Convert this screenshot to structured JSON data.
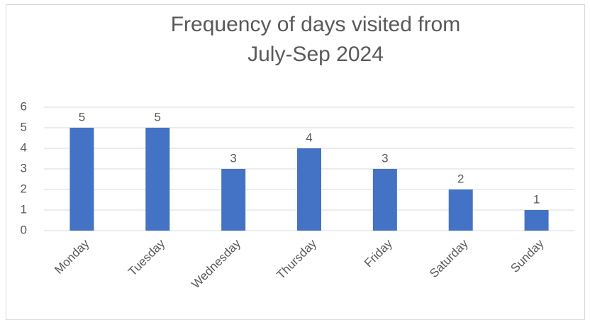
{
  "chart_data": {
    "type": "bar",
    "title": "Frequency of days visited from July-Sep 2024",
    "categories": [
      "Monday",
      "Tuesday",
      "Wednesday",
      "Thursday",
      "Friday",
      "Saturday",
      "Sunday"
    ],
    "values": [
      5,
      5,
      3,
      4,
      3,
      2,
      1
    ],
    "color": "#4472c4",
    "ylim": [
      0,
      6
    ],
    "yticks": [
      0,
      1,
      2,
      3,
      4,
      5,
      6
    ],
    "grid": true
  }
}
